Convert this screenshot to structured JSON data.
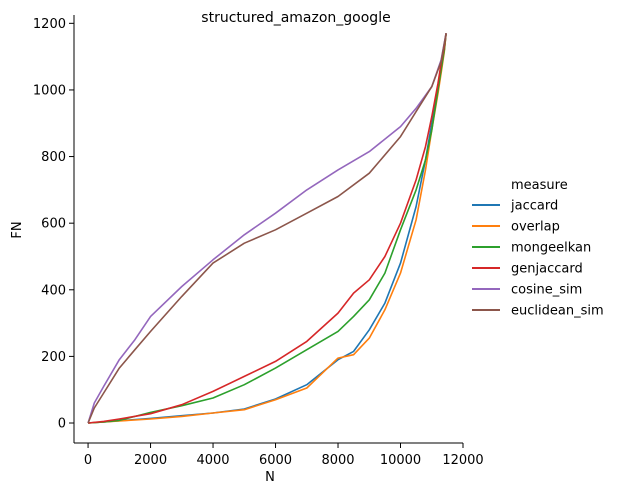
{
  "chart_data": {
    "type": "line",
    "title": "structured_amazon_google",
    "xlabel": "N",
    "ylabel": "FN",
    "xlim": [
      -450,
      12000
    ],
    "ylim": [
      -60,
      1225
    ],
    "xticks": [
      0,
      2000,
      4000,
      6000,
      8000,
      10000,
      12000
    ],
    "yticks": [
      0,
      200,
      400,
      600,
      800,
      1000,
      1200
    ],
    "grid": false,
    "legend_title": "measure",
    "legend_position": "right",
    "series": [
      {
        "name": "jaccard",
        "color": "#1f77b4",
        "x": [
          0,
          500,
          1000,
          2000,
          3000,
          4000,
          5000,
          6000,
          7000,
          8000,
          8500,
          9000,
          9500,
          10000,
          10500,
          10800,
          11000,
          11200,
          11300,
          11400,
          11460
        ],
        "y": [
          0,
          3,
          7,
          14,
          22,
          30,
          42,
          72,
          115,
          190,
          215,
          280,
          360,
          480,
          650,
          790,
          900,
          1000,
          1060,
          1120,
          1170
        ]
      },
      {
        "name": "overlap",
        "color": "#ff7f0e",
        "x": [
          0,
          500,
          1000,
          2000,
          3000,
          4000,
          5000,
          6000,
          7000,
          8000,
          8500,
          9000,
          9500,
          10000,
          10500,
          10800,
          11000,
          11200,
          11300,
          11400,
          11460
        ],
        "y": [
          0,
          3,
          6,
          12,
          20,
          30,
          40,
          70,
          105,
          195,
          205,
          255,
          340,
          450,
          610,
          760,
          880,
          990,
          1050,
          1115,
          1170
        ]
      },
      {
        "name": "mongeelkan",
        "color": "#2ca02c",
        "x": [
          0,
          500,
          1000,
          2000,
          3000,
          4000,
          5000,
          6000,
          7000,
          8000,
          8500,
          9000,
          9500,
          10000,
          10500,
          10800,
          11000,
          11200,
          11300,
          11400,
          11460
        ],
        "y": [
          0,
          3,
          8,
          32,
          52,
          75,
          115,
          165,
          220,
          275,
          320,
          370,
          450,
          580,
          700,
          790,
          880,
          1000,
          1060,
          1120,
          1170
        ]
      },
      {
        "name": "genjaccard",
        "color": "#d62728",
        "x": [
          0,
          500,
          1000,
          2000,
          3000,
          4000,
          5000,
          6000,
          7000,
          8000,
          8500,
          9000,
          9500,
          10000,
          10500,
          10800,
          11000,
          11200,
          11300,
          11400,
          11460
        ],
        "y": [
          0,
          5,
          12,
          28,
          55,
          95,
          140,
          185,
          245,
          330,
          390,
          430,
          500,
          600,
          730,
          830,
          920,
          1020,
          1080,
          1130,
          1170
        ]
      },
      {
        "name": "cosine_sim",
        "color": "#9467bd",
        "x": [
          0,
          200,
          500,
          1000,
          1500,
          2000,
          3000,
          4000,
          5000,
          6000,
          7000,
          8000,
          9000,
          10000,
          10500,
          11000,
          11300,
          11460
        ],
        "y": [
          0,
          60,
          110,
          190,
          250,
          320,
          410,
          490,
          565,
          630,
          700,
          760,
          815,
          890,
          945,
          1010,
          1090,
          1170
        ]
      },
      {
        "name": "euclidean_sim",
        "color": "#8c564b",
        "x": [
          0,
          200,
          500,
          1000,
          1500,
          2000,
          3000,
          4000,
          5000,
          6000,
          7000,
          8000,
          9000,
          10000,
          10500,
          11000,
          11300,
          11460
        ],
        "y": [
          0,
          45,
          90,
          165,
          220,
          275,
          380,
          480,
          540,
          580,
          630,
          680,
          750,
          860,
          935,
          1010,
          1085,
          1170
        ]
      }
    ]
  }
}
